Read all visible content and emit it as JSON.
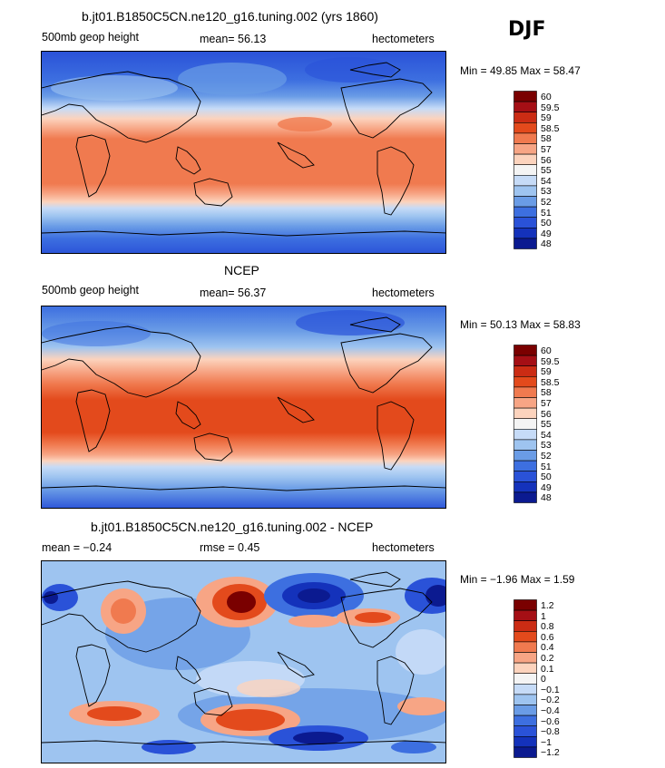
{
  "season": "DJF",
  "panels": [
    {
      "title": "b.jt01.B1850C5CN.ne120_g16.tuning.002 (yrs 1860)",
      "left_label": "500mb geop height",
      "center_label": "mean=  56.13",
      "right_label": "hectometers",
      "minmax": "Min =   49.85  Max =   58.47"
    },
    {
      "title": "NCEP",
      "left_label": "500mb geop height",
      "center_label": "mean=  56.37",
      "right_label": "hectometers",
      "minmax": "Min =   50.13  Max =   58.83"
    },
    {
      "title": "b.jt01.B1850C5CN.ne120_g16.tuning.002 - NCEP",
      "left_label": "mean =  −0.24",
      "center_label": "rmse =   0.45",
      "right_label": "hectometers",
      "minmax": "Min =  −1.96  Max =    1.59"
    }
  ],
  "chart_data": [
    {
      "type": "heatmap",
      "title": "b.jt01.B1850C5CN.ne120_g16.tuning.002 (yrs 1860)",
      "variable": "500mb geop height",
      "units": "hectometers",
      "mean": 56.13,
      "min": 49.85,
      "max": 58.47,
      "levels": [
        "60",
        "59.5",
        "59",
        "58.5",
        "58",
        "57",
        "56",
        "55",
        "54",
        "53",
        "52",
        "51",
        "50",
        "49",
        "48"
      ],
      "colors": [
        "#7a0000",
        "#a50f15",
        "#cb2c14",
        "#e34a1c",
        "#f07a4f",
        "#f7a585",
        "#fcd3bd",
        "#f4f4f4",
        "#c6dbf7",
        "#9ec4f0",
        "#6a9ce6",
        "#3d6fe0",
        "#2a52d8",
        "#1432bb",
        "#0b1a90"
      ]
    },
    {
      "type": "heatmap",
      "title": "NCEP",
      "variable": "500mb geop height",
      "units": "hectometers",
      "mean": 56.37,
      "min": 50.13,
      "max": 58.83,
      "levels": [
        "60",
        "59.5",
        "59",
        "58.5",
        "58",
        "57",
        "56",
        "55",
        "54",
        "53",
        "52",
        "51",
        "50",
        "49",
        "48"
      ],
      "colors": [
        "#7a0000",
        "#a50f15",
        "#cb2c14",
        "#e34a1c",
        "#f07a4f",
        "#f7a585",
        "#fcd3bd",
        "#f4f4f4",
        "#c6dbf7",
        "#9ec4f0",
        "#6a9ce6",
        "#3d6fe0",
        "#2a52d8",
        "#1432bb",
        "#0b1a90"
      ]
    },
    {
      "type": "heatmap",
      "title": "b.jt01.B1850C5CN.ne120_g16.tuning.002 - NCEP",
      "units": "hectometers",
      "mean": -0.24,
      "rmse": 0.45,
      "min": -1.96,
      "max": 1.59,
      "levels": [
        "1.2",
        "1",
        "0.8",
        "0.6",
        "0.4",
        "0.2",
        "0.1",
        "0",
        "−0.1",
        "−0.2",
        "−0.4",
        "−0.6",
        "−0.8",
        "−1",
        "−1.2"
      ],
      "colors": [
        "#7a0000",
        "#a50f15",
        "#cb2c14",
        "#e34a1c",
        "#f07a4f",
        "#f7a585",
        "#fcd3bd",
        "#f4f4f4",
        "#c6dbf7",
        "#9ec4f0",
        "#6a9ce6",
        "#3d6fe0",
        "#2a52d8",
        "#1432bb",
        "#0b1a90"
      ]
    }
  ]
}
